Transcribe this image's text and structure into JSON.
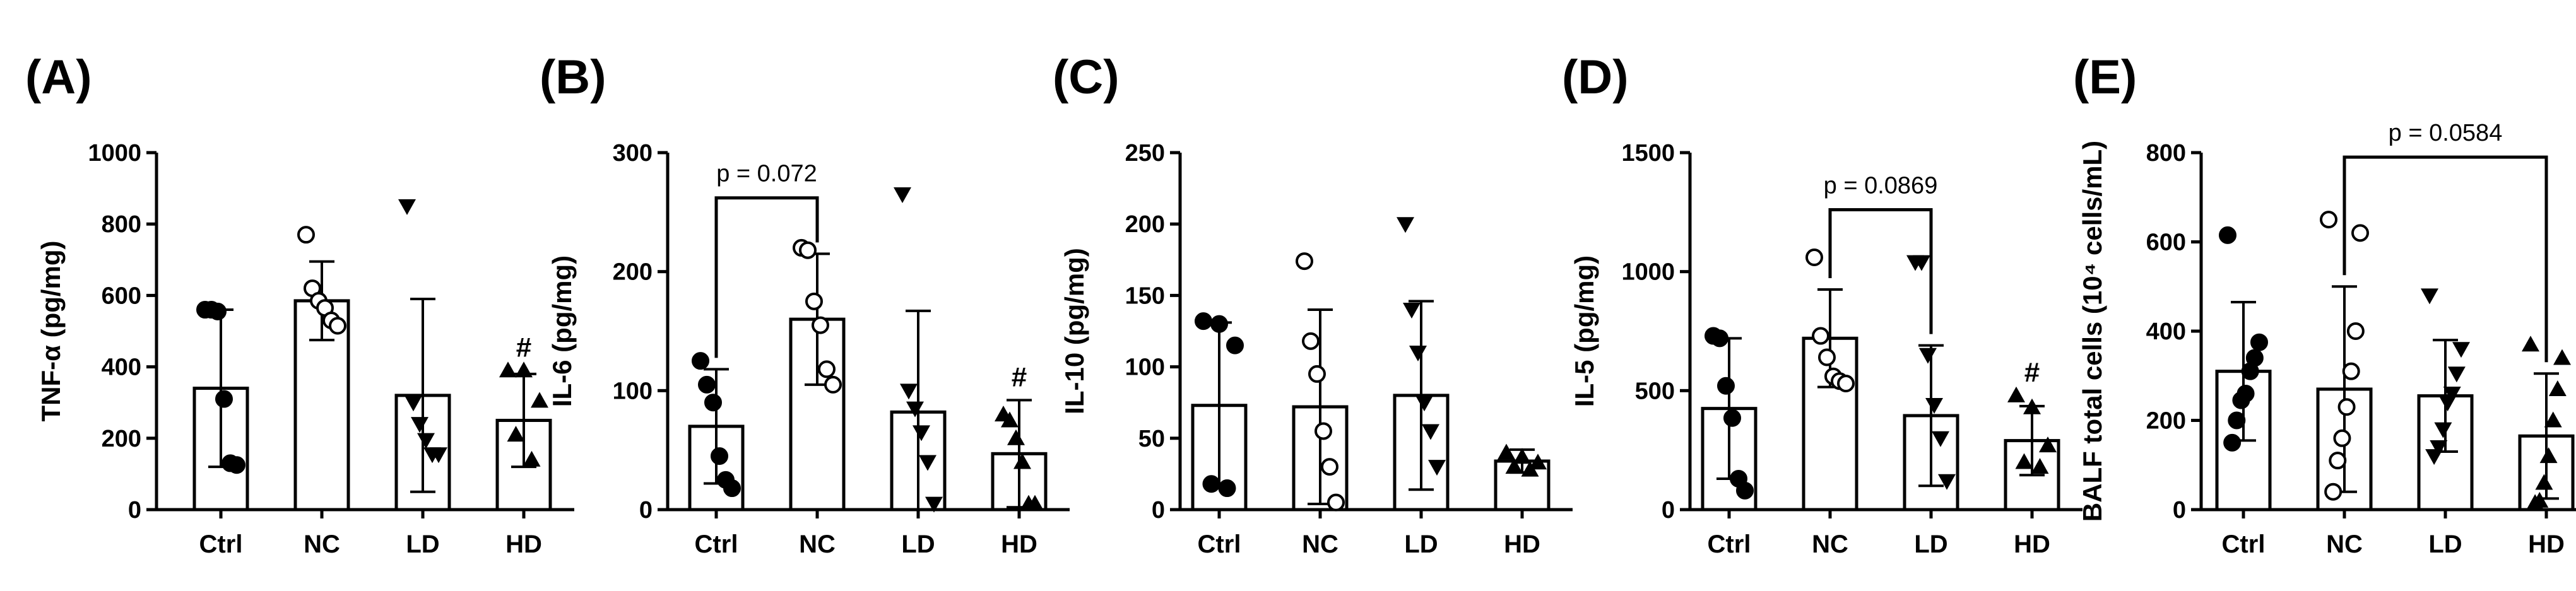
{
  "figure": {
    "style": {
      "stroke": "#000000",
      "fill": "#ffffff",
      "text": "#000000"
    }
  },
  "chart_data": [
    {
      "type": "bar",
      "panel": "(A)",
      "ylabel": "TNF-α (pg/mg)",
      "ylim": [
        0,
        1000
      ],
      "yticks": [
        0,
        200,
        400,
        600,
        800,
        1000
      ],
      "categories": [
        "Ctrl",
        "NC",
        "LD",
        "HD"
      ],
      "values": [
        340,
        585,
        320,
        250
      ],
      "errors": [
        220,
        110,
        270,
        130
      ],
      "markers": [
        "filled-circle",
        "open-circle",
        "filled-triangle-down",
        "filled-triangle-up"
      ],
      "points": [
        [
          560,
          560,
          555,
          310,
          130,
          125
        ],
        [
          770,
          620,
          585,
          565,
          530,
          515
        ],
        [
          850,
          300,
          240,
          195,
          155,
          155
        ],
        [
          390,
          390,
          305,
          210,
          140
        ]
      ],
      "annotations": [
        {
          "category": "HD",
          "text": "#"
        }
      ]
    },
    {
      "type": "bar",
      "panel": "(B)",
      "ylabel": "IL-6 (pg/mg)",
      "ylim": [
        0,
        300
      ],
      "yticks": [
        0,
        100,
        200,
        300
      ],
      "categories": [
        "Ctrl",
        "NC",
        "LD",
        "HD"
      ],
      "values": [
        70,
        160,
        82,
        47
      ],
      "errors": [
        48,
        55,
        85,
        45
      ],
      "markers": [
        "filled-circle",
        "open-circle",
        "filled-triangle-down",
        "filled-triangle-up"
      ],
      "points": [
        [
          125,
          105,
          90,
          45,
          25,
          18
        ],
        [
          220,
          218,
          175,
          155,
          118,
          105
        ],
        [
          265,
          100,
          85,
          65,
          40,
          5
        ],
        [
          80,
          75,
          60,
          40,
          5,
          5
        ]
      ],
      "annotations": [
        {
          "category": "HD",
          "text": "#"
        }
      ],
      "comparisons": [
        {
          "from": "Ctrl",
          "to": "NC",
          "label": "p = 0.072",
          "y": 262
        }
      ]
    },
    {
      "type": "bar",
      "panel": "(C)",
      "ylabel": "IL-10 (pg/mg)",
      "ylim": [
        0,
        250
      ],
      "yticks": [
        0,
        50,
        100,
        150,
        200,
        250
      ],
      "categories": [
        "Ctrl",
        "NC",
        "LD",
        "HD"
      ],
      "values": [
        73,
        72,
        80,
        34
      ],
      "errors": [
        58,
        68,
        66,
        8
      ],
      "markers": [
        "filled-circle",
        "open-circle",
        "filled-triangle-down",
        "filled-triangle-up"
      ],
      "points": [
        [
          132,
          130,
          115,
          18,
          15
        ],
        [
          174,
          118,
          95,
          55,
          30,
          5
        ],
        [
          200,
          140,
          110,
          75,
          55,
          30
        ],
        [
          40,
          37,
          33,
          30,
          28
        ]
      ],
      "annotations": [],
      "comparisons": []
    },
    {
      "type": "bar",
      "panel": "(D)",
      "ylabel": "IL-5 (pg/mg)",
      "ylim": [
        0,
        1500
      ],
      "yticks": [
        0,
        500,
        1000,
        1500
      ],
      "categories": [
        "Ctrl",
        "NC",
        "LD",
        "HD"
      ],
      "values": [
        425,
        720,
        395,
        290
      ],
      "errors": [
        295,
        205,
        295,
        145
      ],
      "markers": [
        "filled-circle",
        "open-circle",
        "filled-triangle-down",
        "filled-triangle-up"
      ],
      "points": [
        [
          730,
          720,
          520,
          385,
          130,
          80
        ],
        [
          1060,
          730,
          640,
          560,
          540,
          530
        ],
        [
          1040,
          1040,
          650,
          440,
          300,
          120
        ],
        [
          480,
          430,
          270,
          200,
          180
        ]
      ],
      "annotations": [
        {
          "category": "HD",
          "text": "#"
        }
      ],
      "comparisons": [
        {
          "from": "NC",
          "to": "LD",
          "label": "p = 0.0869",
          "y": 1260
        }
      ]
    },
    {
      "type": "bar",
      "panel": "(E)",
      "ylabel": "BALF total cells (10⁴ cells/mL)",
      "ylim": [
        0,
        800
      ],
      "yticks": [
        0,
        200,
        400,
        600,
        800
      ],
      "categories": [
        "Ctrl",
        "NC",
        "LD",
        "HD"
      ],
      "values": [
        310,
        270,
        255,
        165
      ],
      "errors": [
        155,
        230,
        125,
        140
      ],
      "markers": [
        "filled-circle",
        "open-circle",
        "filled-triangle-down",
        "filled-triangle-up"
      ],
      "points": [
        [
          615,
          375,
          340,
          310,
          260,
          245,
          200,
          150
        ],
        [
          650,
          620,
          400,
          310,
          230,
          160,
          110,
          40
        ],
        [
          480,
          360,
          305,
          260,
          240,
          180,
          140,
          120
        ],
        [
          370,
          340,
          270,
          200,
          120,
          60,
          20,
          15
        ]
      ],
      "annotations": [],
      "comparisons": [
        {
          "from": "NC",
          "to": "HD",
          "label": "p = 0.0584",
          "y": 790
        }
      ]
    }
  ]
}
